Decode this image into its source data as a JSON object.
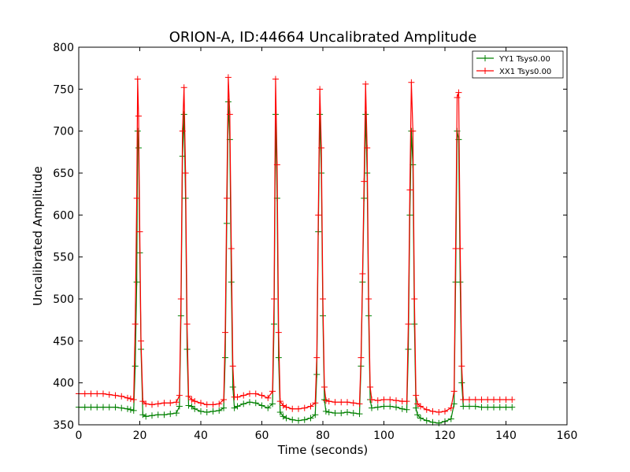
{
  "chart_data": {
    "type": "line",
    "title": "ORION-A, ID:44664 Uncalibrated Amplitude",
    "xlabel": "Time (seconds)",
    "ylabel": "Uncalibrated Amplitude",
    "xlim": [
      0,
      160
    ],
    "ylim": [
      350,
      800
    ],
    "xticks": [
      "0",
      "20",
      "40",
      "60",
      "80",
      "100",
      "120",
      "140",
      "160"
    ],
    "yticks": [
      "350",
      "400",
      "450",
      "500",
      "550",
      "600",
      "650",
      "700",
      "750",
      "800"
    ],
    "grid": false,
    "legend_position": "top-right",
    "marker": "+",
    "series": [
      {
        "name": "YY1 Tsys0.00",
        "color": "#008000",
        "points": [
          [
            0,
            371
          ],
          [
            2,
            371
          ],
          [
            4,
            371
          ],
          [
            6,
            371
          ],
          [
            8,
            371
          ],
          [
            10,
            371
          ],
          [
            12,
            371
          ],
          [
            14,
            370
          ],
          [
            16,
            369
          ],
          [
            17,
            368
          ],
          [
            18,
            367
          ],
          [
            18.5,
            420
          ],
          [
            19,
            520
          ],
          [
            19.3,
            700
          ],
          [
            19.6,
            680
          ],
          [
            20,
            555
          ],
          [
            20.4,
            440
          ],
          [
            21,
            362
          ],
          [
            22,
            360
          ],
          [
            24,
            361
          ],
          [
            26,
            362
          ],
          [
            28,
            362
          ],
          [
            30,
            363
          ],
          [
            32,
            364
          ],
          [
            33,
            372
          ],
          [
            33.5,
            480
          ],
          [
            34,
            670
          ],
          [
            34.5,
            720
          ],
          [
            35,
            620
          ],
          [
            35.5,
            440
          ],
          [
            36,
            373
          ],
          [
            37,
            372
          ],
          [
            38,
            369
          ],
          [
            40,
            366
          ],
          [
            42,
            365
          ],
          [
            44,
            366
          ],
          [
            46,
            367
          ],
          [
            47.5,
            370
          ],
          [
            48,
            430
          ],
          [
            48.5,
            590
          ],
          [
            49,
            735
          ],
          [
            49.5,
            690
          ],
          [
            50,
            520
          ],
          [
            50.5,
            395
          ],
          [
            51,
            370
          ],
          [
            52,
            372
          ],
          [
            54,
            375
          ],
          [
            56,
            377
          ],
          [
            58,
            376
          ],
          [
            60,
            373
          ],
          [
            62,
            370
          ],
          [
            63.5,
            375
          ],
          [
            64,
            470
          ],
          [
            64.5,
            720
          ],
          [
            65,
            620
          ],
          [
            65.5,
            430
          ],
          [
            66,
            365
          ],
          [
            67,
            360
          ],
          [
            68,
            358
          ],
          [
            70,
            356
          ],
          [
            72,
            355
          ],
          [
            74,
            356
          ],
          [
            76,
            358
          ],
          [
            77.5,
            362
          ],
          [
            78,
            410
          ],
          [
            78.5,
            580
          ],
          [
            79,
            720
          ],
          [
            79.5,
            650
          ],
          [
            80,
            480
          ],
          [
            80.5,
            380
          ],
          [
            81,
            366
          ],
          [
            82,
            365
          ],
          [
            84,
            364
          ],
          [
            86,
            364
          ],
          [
            88,
            365
          ],
          [
            90,
            364
          ],
          [
            92,
            363
          ],
          [
            92.5,
            420
          ],
          [
            93,
            520
          ],
          [
            93.5,
            620
          ],
          [
            94,
            720
          ],
          [
            94.5,
            650
          ],
          [
            95,
            480
          ],
          [
            95.5,
            380
          ],
          [
            96,
            370
          ],
          [
            98,
            371
          ],
          [
            100,
            372
          ],
          [
            102,
            372
          ],
          [
            104,
            371
          ],
          [
            106,
            369
          ],
          [
            107.5,
            368
          ],
          [
            108,
            440
          ],
          [
            108.5,
            600
          ],
          [
            109,
            700
          ],
          [
            109.5,
            660
          ],
          [
            110,
            470
          ],
          [
            110.5,
            370
          ],
          [
            111,
            362
          ],
          [
            112,
            358
          ],
          [
            114,
            355
          ],
          [
            116,
            353
          ],
          [
            118,
            352
          ],
          [
            120,
            354
          ],
          [
            122,
            357
          ],
          [
            123,
            375
          ],
          [
            123.5,
            520
          ],
          [
            124,
            700
          ],
          [
            124.5,
            690
          ],
          [
            125,
            520
          ],
          [
            125.5,
            400
          ],
          [
            126,
            372
          ],
          [
            128,
            372
          ],
          [
            130,
            372
          ],
          [
            132,
            371
          ],
          [
            134,
            371
          ],
          [
            136,
            371
          ],
          [
            138,
            371
          ],
          [
            140,
            371
          ],
          [
            142,
            371
          ]
        ]
      },
      {
        "name": "XX1 Tsys0.00",
        "color": "#ff0000",
        "points": [
          [
            0,
            387
          ],
          [
            2,
            387
          ],
          [
            4,
            387
          ],
          [
            6,
            387
          ],
          [
            8,
            387
          ],
          [
            10,
            386
          ],
          [
            12,
            385
          ],
          [
            14,
            384
          ],
          [
            16,
            382
          ],
          [
            17,
            381
          ],
          [
            18,
            380
          ],
          [
            18.5,
            470
          ],
          [
            19,
            620
          ],
          [
            19.3,
            762
          ],
          [
            19.6,
            718
          ],
          [
            20,
            580
          ],
          [
            20.4,
            450
          ],
          [
            21,
            378
          ],
          [
            22,
            375
          ],
          [
            24,
            374
          ],
          [
            26,
            375
          ],
          [
            28,
            376
          ],
          [
            30,
            376
          ],
          [
            32,
            377
          ],
          [
            33,
            385
          ],
          [
            33.5,
            500
          ],
          [
            34,
            700
          ],
          [
            34.5,
            752
          ],
          [
            35,
            650
          ],
          [
            35.5,
            470
          ],
          [
            36,
            384
          ],
          [
            37,
            380
          ],
          [
            38,
            378
          ],
          [
            40,
            376
          ],
          [
            42,
            374
          ],
          [
            44,
            374
          ],
          [
            46,
            375
          ],
          [
            47.5,
            380
          ],
          [
            48,
            460
          ],
          [
            48.5,
            620
          ],
          [
            49,
            764
          ],
          [
            49.5,
            720
          ],
          [
            50,
            560
          ],
          [
            50.5,
            420
          ],
          [
            51,
            383
          ],
          [
            52,
            383
          ],
          [
            54,
            385
          ],
          [
            56,
            387
          ],
          [
            58,
            387
          ],
          [
            60,
            385
          ],
          [
            62,
            382
          ],
          [
            63.5,
            390
          ],
          [
            64,
            500
          ],
          [
            64.5,
            762
          ],
          [
            65,
            660
          ],
          [
            65.5,
            460
          ],
          [
            66,
            378
          ],
          [
            67,
            373
          ],
          [
            68,
            371
          ],
          [
            70,
            369
          ],
          [
            72,
            369
          ],
          [
            74,
            370
          ],
          [
            76,
            372
          ],
          [
            77.5,
            376
          ],
          [
            78,
            430
          ],
          [
            78.5,
            600
          ],
          [
            79,
            750
          ],
          [
            79.5,
            680
          ],
          [
            80,
            500
          ],
          [
            80.5,
            395
          ],
          [
            81,
            379
          ],
          [
            82,
            378
          ],
          [
            84,
            377
          ],
          [
            86,
            377
          ],
          [
            88,
            377
          ],
          [
            90,
            376
          ],
          [
            92,
            375
          ],
          [
            92.5,
            430
          ],
          [
            93,
            530
          ],
          [
            93.5,
            640
          ],
          [
            94,
            756
          ],
          [
            94.5,
            680
          ],
          [
            95,
            500
          ],
          [
            95.5,
            395
          ],
          [
            96,
            380
          ],
          [
            98,
            379
          ],
          [
            100,
            380
          ],
          [
            102,
            380
          ],
          [
            104,
            379
          ],
          [
            106,
            378
          ],
          [
            107.5,
            378
          ],
          [
            108,
            470
          ],
          [
            108.5,
            630
          ],
          [
            109,
            758
          ],
          [
            109.5,
            700
          ],
          [
            110,
            500
          ],
          [
            110.5,
            385
          ],
          [
            111,
            375
          ],
          [
            112,
            372
          ],
          [
            114,
            368
          ],
          [
            116,
            366
          ],
          [
            118,
            365
          ],
          [
            120,
            366
          ],
          [
            122,
            370
          ],
          [
            123,
            390
          ],
          [
            123.5,
            560
          ],
          [
            124,
            740
          ],
          [
            124.5,
            746
          ],
          [
            125,
            560
          ],
          [
            125.5,
            420
          ],
          [
            126,
            380
          ],
          [
            128,
            380
          ],
          [
            130,
            380
          ],
          [
            132,
            380
          ],
          [
            134,
            380
          ],
          [
            136,
            380
          ],
          [
            138,
            380
          ],
          [
            140,
            380
          ],
          [
            142,
            380
          ]
        ]
      }
    ]
  }
}
